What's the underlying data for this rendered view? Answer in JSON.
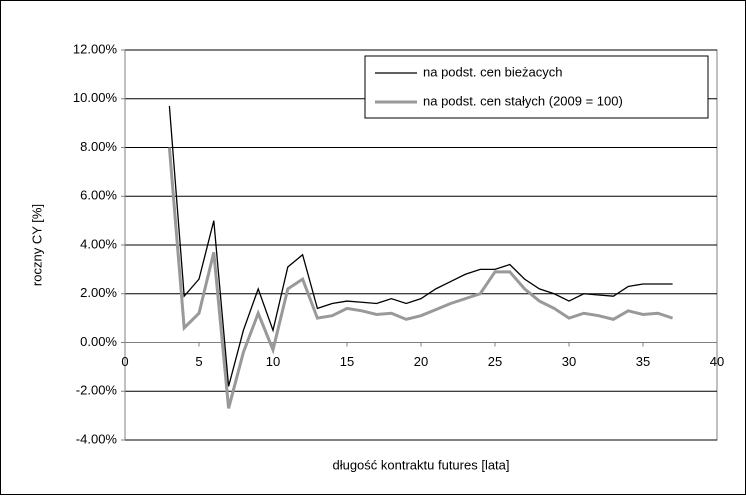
{
  "chart_data": {
    "type": "line",
    "x_label": "długość kontraktu futures [lata]",
    "y_label": "roczny CY [%]",
    "x": [
      3,
      4,
      5,
      6,
      7,
      8,
      9,
      10,
      11,
      12,
      13,
      14,
      15,
      16,
      17,
      18,
      19,
      20,
      21,
      22,
      23,
      24,
      25,
      26,
      27,
      28,
      29,
      30,
      31,
      32,
      33,
      34,
      35,
      36,
      37
    ],
    "series": [
      {
        "name": "na podst. cen bieżacych",
        "color": "#000000",
        "values": [
          9.7,
          1.9,
          2.6,
          5.0,
          -1.8,
          0.5,
          2.2,
          0.5,
          3.1,
          3.6,
          1.4,
          1.6,
          1.7,
          1.65,
          1.6,
          1.8,
          1.6,
          1.8,
          2.2,
          2.5,
          2.8,
          3.0,
          3.0,
          3.2,
          2.6,
          2.2,
          2.0,
          1.7,
          2.0,
          1.95,
          1.9,
          2.3,
          2.4,
          2.4,
          2.4
        ]
      },
      {
        "name": "na podst. cen stałych (2009 = 100)",
        "color": "#999999",
        "values": [
          8.0,
          0.6,
          1.2,
          3.7,
          -2.7,
          -0.4,
          1.2,
          -0.3,
          2.2,
          2.6,
          1.0,
          1.1,
          1.4,
          1.3,
          1.15,
          1.2,
          0.95,
          1.1,
          1.35,
          1.6,
          1.8,
          2.0,
          2.9,
          2.9,
          2.2,
          1.7,
          1.4,
          1.0,
          1.2,
          1.1,
          0.95,
          1.3,
          1.15,
          1.2,
          1.0
        ]
      }
    ],
    "xlim": [
      0,
      40
    ],
    "xticks": [
      0,
      5,
      10,
      15,
      20,
      25,
      30,
      35,
      40
    ],
    "ylim": [
      -4,
      12
    ],
    "yticks": [
      {
        "value": -4,
        "label": "-4.00%"
      },
      {
        "value": -2,
        "label": "-2.00%"
      },
      {
        "value": 0,
        "label": "0.00%"
      },
      {
        "value": 2,
        "label": "2.00%"
      },
      {
        "value": 4,
        "label": "4.00%"
      },
      {
        "value": 6,
        "label": "6.00%"
      },
      {
        "value": 8,
        "label": "8.00%"
      },
      {
        "value": 10,
        "label": "10.00%"
      },
      {
        "value": 12,
        "label": "12.00%"
      }
    ],
    "grid": true,
    "legend": "upper right"
  }
}
